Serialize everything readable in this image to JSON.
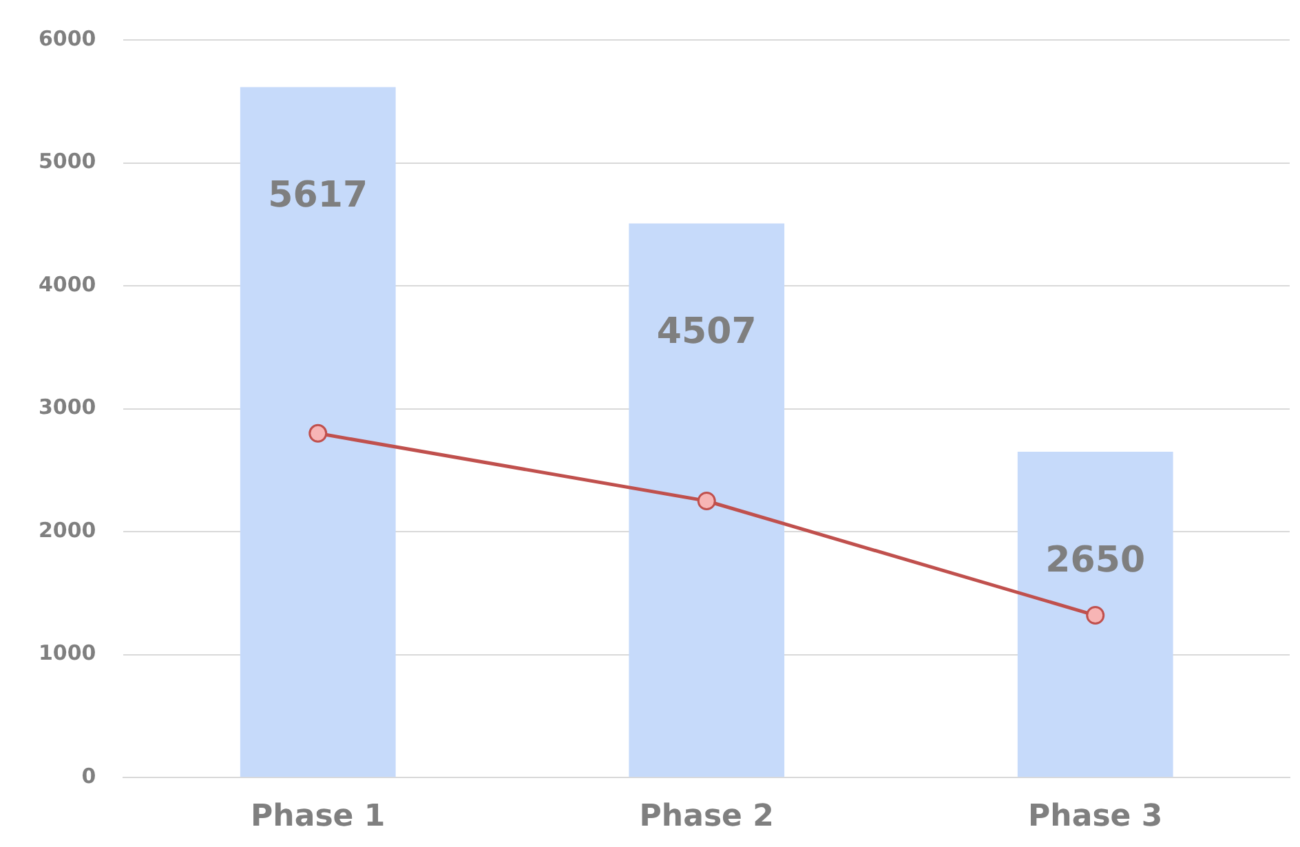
{
  "chart_data": {
    "type": "bar",
    "categories": [
      "Phase 1",
      "Phase 2",
      "Phase 3"
    ],
    "series": [
      {
        "color": "#c6dafa",
        "values": [
          5617,
          4507,
          2650
        ],
        "value_labels": [
          "5617",
          "4507",
          "2650"
        ]
      },
      {
        "type": "line",
        "color": "#c0504d",
        "values": [
          2800,
          2250,
          1320
        ],
        "marker": "circle"
      }
    ],
    "ylim": [
      0,
      6000
    ],
    "yticks": [
      0,
      1000,
      2000,
      3000,
      4000,
      5000,
      6000
    ],
    "grid": "y",
    "legend": false
  }
}
